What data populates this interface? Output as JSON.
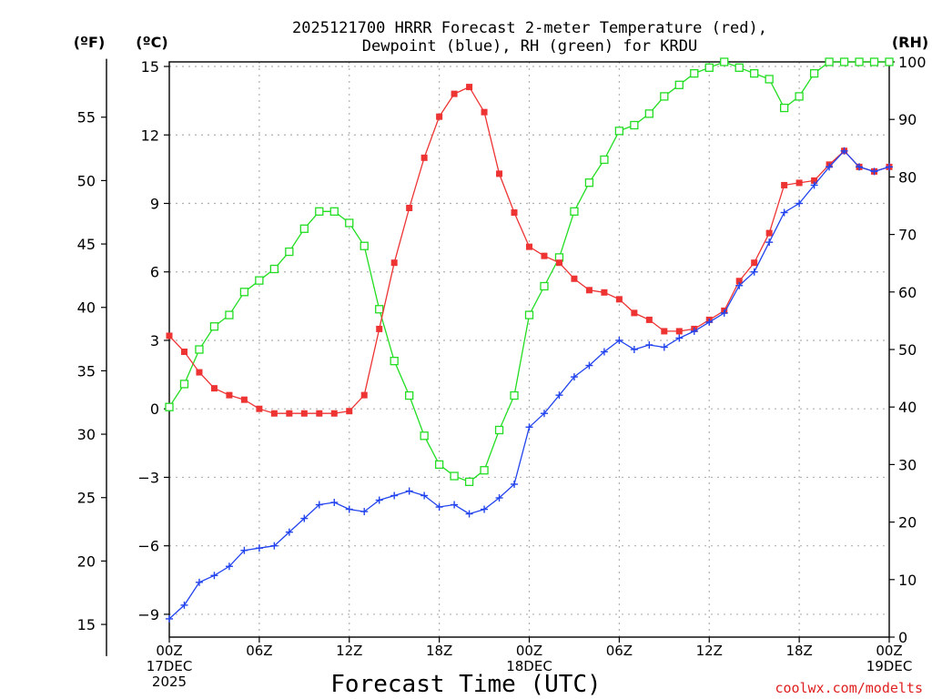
{
  "chart_data": {
    "type": "line",
    "title_lines": [
      "2025121700 HRRR Forecast 2-meter Temperature (red),",
      "Dewpoint (blue), RH (green) for KRDU"
    ],
    "xlabel": "Forecast Time (UTC)",
    "credit": "coolwx.com/modelts",
    "unit_labels": {
      "fahrenheit": "(ºF)",
      "celsius": "(ºC)",
      "rh": "(RH)"
    },
    "x_range_hours": [
      0,
      48
    ],
    "x_ticks": [
      {
        "hour": 0,
        "lines": [
          "00Z",
          "17DEC",
          "2025"
        ]
      },
      {
        "hour": 6,
        "lines": [
          "06Z"
        ]
      },
      {
        "hour": 12,
        "lines": [
          "12Z"
        ]
      },
      {
        "hour": 18,
        "lines": [
          "18Z"
        ]
      },
      {
        "hour": 24,
        "lines": [
          "00Z",
          "18DEC"
        ]
      },
      {
        "hour": 30,
        "lines": [
          "06Z"
        ]
      },
      {
        "hour": 36,
        "lines": [
          "12Z"
        ]
      },
      {
        "hour": 42,
        "lines": [
          "18Z"
        ]
      },
      {
        "hour": 48,
        "lines": [
          "00Z",
          "19DEC"
        ]
      }
    ],
    "y_celsius": {
      "range": [
        -10,
        15.2
      ],
      "ticks": [
        -9,
        -6,
        -3,
        0,
        3,
        6,
        9,
        12,
        15
      ],
      "tick_labels": [
        "−9",
        "−6",
        "−3",
        "0",
        "3",
        "6",
        "9",
        "12",
        "15"
      ]
    },
    "y_fahrenheit": {
      "ticks": [
        15,
        20,
        25,
        30,
        35,
        40,
        45,
        50,
        55
      ],
      "tick_labels": [
        "15",
        "20",
        "25",
        "30",
        "35",
        "40",
        "45",
        "50",
        "55"
      ]
    },
    "y_rh": {
      "range": [
        0,
        100
      ],
      "ticks": [
        0,
        10,
        20,
        30,
        40,
        50,
        60,
        70,
        80,
        90,
        100
      ],
      "tick_labels": [
        "0",
        "10",
        "20",
        "30",
        "40",
        "50",
        "60",
        "70",
        "80",
        "90",
        "100"
      ]
    },
    "grid": true,
    "colors": {
      "temperature": "#ee3333",
      "dewpoint": "#2244ee",
      "rh": "#22dd22",
      "grid": "#b0b0b0",
      "frame": "#000000"
    },
    "series": [
      {
        "name": "Temperature",
        "unit": "celsius",
        "marker": "filled-square",
        "hours": [
          0,
          1,
          2,
          3,
          4,
          5,
          6,
          7,
          8,
          9,
          10,
          11,
          12,
          13,
          14,
          15,
          16,
          17,
          18,
          19,
          20,
          21,
          22,
          23,
          24,
          25,
          26,
          27,
          28,
          29,
          30,
          31,
          32,
          33,
          34,
          35,
          36,
          37,
          38,
          39,
          40,
          41,
          42,
          43,
          44,
          45,
          46,
          47,
          48
        ],
        "values": [
          3.2,
          2.5,
          1.6,
          0.9,
          0.6,
          0.4,
          0.0,
          -0.2,
          -0.2,
          -0.2,
          -0.2,
          -0.2,
          -0.1,
          0.6,
          3.5,
          6.4,
          8.8,
          11.0,
          12.8,
          13.8,
          14.1,
          13.0,
          10.3,
          8.6,
          7.1,
          6.7,
          6.4,
          5.7,
          5.2,
          5.1,
          4.8,
          4.2,
          3.9,
          3.4,
          3.4,
          3.5,
          3.9,
          4.3,
          5.6,
          6.4,
          7.7,
          9.8,
          9.9,
          10.0,
          10.7,
          11.3,
          10.6,
          10.4,
          10.6
        ]
      },
      {
        "name": "Dewpoint",
        "unit": "celsius",
        "marker": "plus",
        "hours": [
          0,
          1,
          2,
          3,
          4,
          5,
          6,
          7,
          8,
          9,
          10,
          11,
          12,
          13,
          14,
          15,
          16,
          17,
          18,
          19,
          20,
          21,
          22,
          23,
          24,
          25,
          26,
          27,
          28,
          29,
          30,
          31,
          32,
          33,
          34,
          35,
          36,
          37,
          38,
          39,
          40,
          41,
          42,
          43,
          44,
          45,
          46,
          47,
          48
        ],
        "values": [
          -9.2,
          -8.6,
          -7.6,
          -7.3,
          -6.9,
          -6.2,
          -6.1,
          -6.0,
          -5.4,
          -4.8,
          -4.2,
          -4.1,
          -4.4,
          -4.5,
          -4.0,
          -3.8,
          -3.6,
          -3.8,
          -4.3,
          -4.2,
          -4.6,
          -4.4,
          -3.9,
          -3.3,
          -0.8,
          -0.2,
          0.6,
          1.4,
          1.9,
          2.5,
          3.0,
          2.6,
          2.8,
          2.7,
          3.1,
          3.4,
          3.8,
          4.2,
          5.4,
          6.0,
          7.3,
          8.6,
          9.0,
          9.8,
          10.6,
          11.3,
          10.6,
          10.4,
          10.6
        ]
      },
      {
        "name": "RH",
        "unit": "rh",
        "marker": "open-square",
        "hours": [
          0,
          1,
          2,
          3,
          4,
          5,
          6,
          7,
          8,
          9,
          10,
          11,
          12,
          13,
          14,
          15,
          16,
          17,
          18,
          19,
          20,
          21,
          22,
          23,
          24,
          25,
          26,
          27,
          28,
          29,
          30,
          31,
          32,
          33,
          34,
          35,
          36,
          37,
          38,
          39,
          40,
          41,
          42,
          43,
          44,
          45,
          46,
          47,
          48
        ],
        "values": [
          40,
          44,
          50,
          54,
          56,
          60,
          62,
          64,
          67,
          71,
          74,
          74,
          72,
          68,
          57,
          48,
          42,
          35,
          30,
          28,
          27,
          29,
          36,
          42,
          56,
          61,
          66,
          74,
          79,
          83,
          88,
          89,
          91,
          94,
          96,
          98,
          99,
          100,
          99,
          98,
          97,
          92,
          94,
          98,
          100,
          100,
          100,
          100,
          100
        ]
      }
    ]
  }
}
